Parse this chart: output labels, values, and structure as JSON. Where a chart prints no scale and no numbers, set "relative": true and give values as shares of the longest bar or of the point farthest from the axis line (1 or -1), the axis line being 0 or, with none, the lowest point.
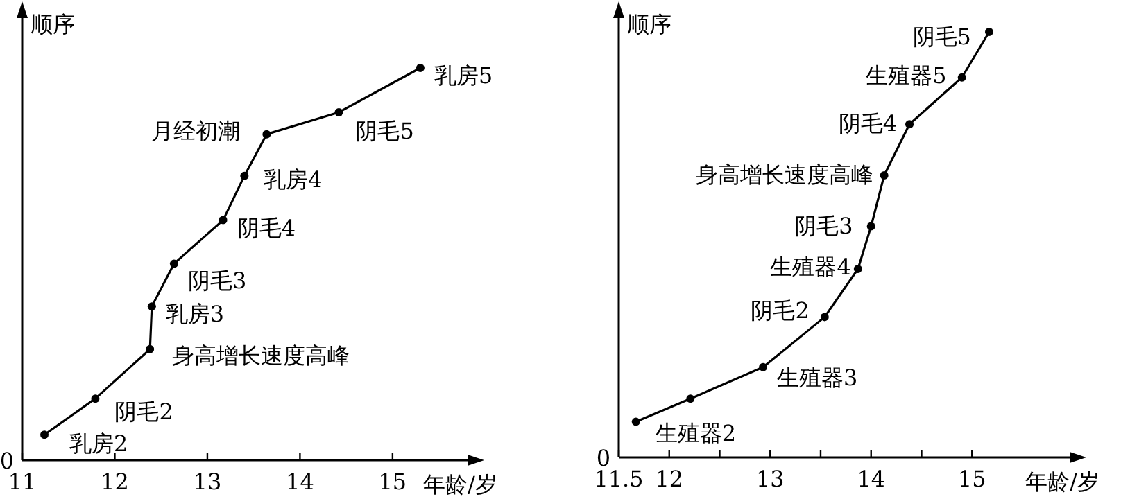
{
  "chart_data": [
    {
      "type": "line",
      "relative": true,
      "xlabel": "年龄/岁",
      "ylabel": "顺序",
      "xlim": [
        11,
        15.9
      ],
      "xticks": [
        11,
        12,
        13,
        14,
        15
      ],
      "marker": "circle",
      "line_style": "solid",
      "series": [
        {
          "color": "#000000",
          "x": [
            11.24,
            11.79,
            12.38,
            12.4,
            12.64,
            13.17,
            13.4,
            13.64,
            14.42,
            15.3
          ],
          "values": [
            0.065,
            0.157,
            0.283,
            0.392,
            0.501,
            0.612,
            0.725,
            0.831,
            0.887,
            1
          ]
        }
      ],
      "annotations": [
        "0",
        {
          "text": "乳房2",
          "x": 11.24,
          "y": 0.065
        },
        {
          "text": "阴毛2",
          "x": 11.79,
          "y": 0.157
        },
        {
          "text": "身高增长速度高峰",
          "x": 12.38,
          "y": 0.283
        },
        {
          "text": "乳房3",
          "x": 12.4,
          "y": 0.392
        },
        {
          "text": "阴毛3",
          "x": 12.64,
          "y": 0.501
        },
        {
          "text": "阴毛4",
          "x": 13.17,
          "y": 0.612
        },
        {
          "text": "乳房4",
          "x": 13.4,
          "y": 0.725
        },
        {
          "text": "月经初潮",
          "x": 13.64,
          "y": 0.831
        },
        {
          "text": "阴毛5",
          "x": 14.42,
          "y": 0.887
        },
        {
          "text": "乳房5",
          "x": 15.3,
          "y": 1
        }
      ]
    },
    {
      "type": "line",
      "relative": true,
      "xlabel": "年龄/岁",
      "ylabel": "顺序",
      "xlim": [
        11.5,
        16.05
      ],
      "xticks": [
        11.5,
        12,
        {
          "value": 12.5,
          "label": null
        },
        13,
        {
          "value": 13.5,
          "label": null
        },
        14,
        {
          "value": 14.5,
          "label": null
        },
        15
      ],
      "marker": "circle",
      "line_style": "solid",
      "series": [
        {
          "color": "#000000",
          "x": [
            11.67,
            12.21,
            12.93,
            13.54,
            13.87,
            14.0,
            14.13,
            14.38,
            14.9,
            15.17
          ],
          "values": [
            0.084,
            0.138,
            0.212,
            0.33,
            0.443,
            0.543,
            0.663,
            0.783,
            0.893,
            1
          ]
        }
      ],
      "annotations": [
        "0",
        {
          "text": "生殖器2",
          "x": 11.67,
          "y": 0.084
        },
        {
          "text": "生殖器3",
          "x": 12.93,
          "y": 0.212
        },
        {
          "text": "阴毛2",
          "x": 13.54,
          "y": 0.33
        },
        {
          "text": "生殖器4",
          "x": 13.87,
          "y": 0.443
        },
        {
          "text": "阴毛3",
          "x": 14.0,
          "y": 0.543
        },
        {
          "text": "身高增长速度高峰",
          "x": 14.13,
          "y": 0.663
        },
        {
          "text": "阴毛4",
          "x": 14.38,
          "y": 0.783
        },
        {
          "text": "生殖器5",
          "x": 14.9,
          "y": 0.893
        },
        {
          "text": "阴毛5",
          "x": 15.17,
          "y": 1
        }
      ]
    }
  ]
}
